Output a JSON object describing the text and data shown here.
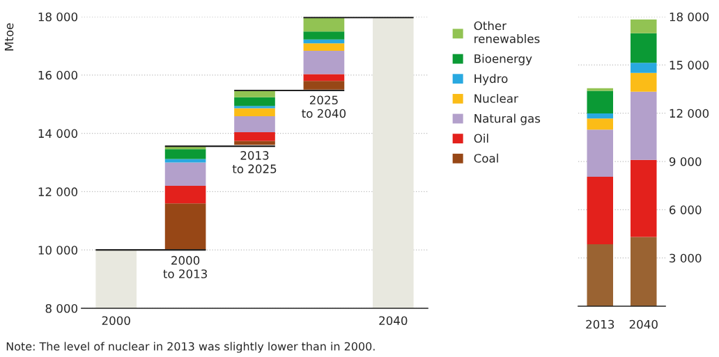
{
  "chart_data": [
    {
      "type": "bar",
      "ylabel": "Mtoe",
      "categories": [
        "2000",
        "2000\nto 2013",
        "2013\nto 2025",
        "2025\nto 2040",
        "2040"
      ],
      "series": [
        {
          "color": "#e8e8df",
          "values": [
            10000,
            null,
            null,
            null,
            17950
          ]
        },
        {
          "name": "Coal",
          "color": "#974716",
          "base": [
            null,
            10000,
            13600,
            15500,
            null
          ],
          "values": [
            null,
            1600,
            140,
            300,
            null
          ]
        },
        {
          "name": "Oil",
          "color": "#e3211c",
          "base": [
            null,
            11600,
            13740,
            15800,
            null
          ],
          "values": [
            null,
            600,
            300,
            230,
            null
          ]
        },
        {
          "name": "Natural gas",
          "color": "#b3a0cb",
          "base": [
            null,
            12200,
            14040,
            16030,
            null
          ],
          "values": [
            null,
            800,
            550,
            800,
            null
          ]
        },
        {
          "name": "Nuclear",
          "color": "#fbbc17",
          "base": [
            null,
            null,
            14590,
            16830,
            null
          ],
          "values": [
            null,
            null,
            270,
            260,
            null
          ]
        },
        {
          "name": "Hydro",
          "color": "#29a9e0",
          "base": [
            null,
            13000,
            14860,
            17090,
            null
          ],
          "values": [
            null,
            120,
            80,
            130,
            null
          ]
        },
        {
          "name": "Bioenergy",
          "color": "#0b9a35",
          "base": [
            null,
            13120,
            14940,
            17220,
            null
          ],
          "values": [
            null,
            340,
            300,
            270,
            null
          ]
        },
        {
          "name": "Other\nrenewables",
          "color": "#92c353",
          "base": [
            null,
            13460,
            15240,
            17490,
            null
          ],
          "values": [
            null,
            100,
            230,
            480,
            null
          ]
        }
      ],
      "ylim": [
        8000,
        18000
      ],
      "yticks": [
        {
          "value": 8000,
          "label": "8 000"
        },
        {
          "value": 10000,
          "label": "10 000"
        },
        {
          "value": 12000,
          "label": "12 000"
        },
        {
          "value": 14000,
          "label": "14 000"
        },
        {
          "value": 16000,
          "label": "16 000"
        },
        {
          "value": 18000,
          "label": "18 000"
        }
      ],
      "grid": "y",
      "legend": "right",
      "annotations": [
        "Note: The level of nuclear in 2013 was slightly lower than in 2000."
      ]
    },
    {
      "type": "bar",
      "stacked": true,
      "categories": [
        "2013",
        "2040"
      ],
      "series": [
        {
          "color": "#9a6332",
          "values": [
            3850,
            4300
          ]
        },
        {
          "color": "#e3211c",
          "values": [
            4200,
            4800
          ]
        },
        {
          "color": "#b3a0cb",
          "values": [
            2930,
            4240
          ]
        },
        {
          "color": "#fbbc17",
          "values": [
            690,
            1170
          ]
        },
        {
          "color": "#29a9e0",
          "values": [
            320,
            620
          ]
        },
        {
          "color": "#0b9a35",
          "values": [
            1400,
            1840
          ]
        },
        {
          "color": "#92c353",
          "values": [
            160,
            860
          ]
        }
      ],
      "ylim": [
        0,
        18000
      ],
      "yticks": [
        {
          "value": 3000,
          "label": "3 000"
        },
        {
          "value": 6000,
          "label": "6 000"
        },
        {
          "value": 9000,
          "label": "9 000"
        },
        {
          "value": 12000,
          "label": "12 000"
        },
        {
          "value": 15000,
          "label": "15 000"
        },
        {
          "value": 18000,
          "label": "18 000"
        }
      ],
      "grid": "y"
    }
  ]
}
